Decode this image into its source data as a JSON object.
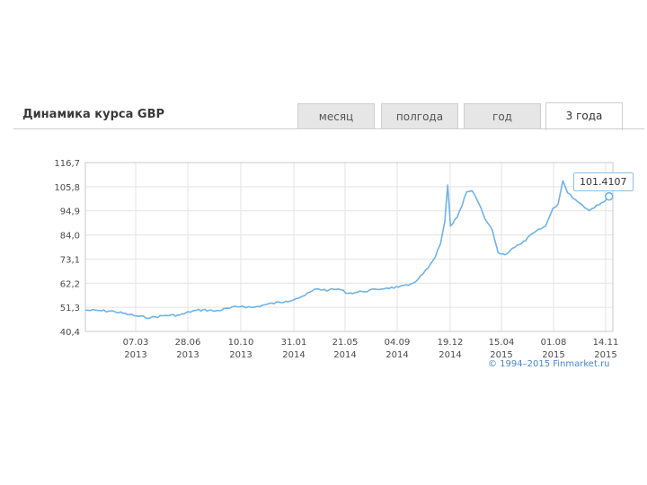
{
  "widget": {
    "title": "Динамика курса GBP",
    "tabs": [
      {
        "label": "месяц",
        "active": false
      },
      {
        "label": "полгода",
        "active": false
      },
      {
        "label": "год",
        "active": false
      },
      {
        "label": "3 года",
        "active": true
      }
    ],
    "credit": "© 1994–2015 Finmarket.ru",
    "last_value_label": "101.4107"
  },
  "colors": {
    "line": "#6fb3e6",
    "grid": "#e3e3e3",
    "axis": "#c8c8c8",
    "tab_bg": "#e6e6e6"
  },
  "chart_data": {
    "type": "line",
    "title": "",
    "xlabel": "",
    "ylabel": "",
    "ylim": [
      40.4,
      116.7
    ],
    "yticks": [
      "116,7",
      "105,8",
      "94,9",
      "84,0",
      "73,1",
      "62,2",
      "51,3",
      "40,4"
    ],
    "xticks": [
      {
        "date": "07.03",
        "year": "2013"
      },
      {
        "date": "28.06",
        "year": "2013"
      },
      {
        "date": "10.10",
        "year": "2013"
      },
      {
        "date": "31.01",
        "year": "2014"
      },
      {
        "date": "21.05",
        "year": "2014"
      },
      {
        "date": "04.09",
        "year": "2014"
      },
      {
        "date": "19.12",
        "year": "2014"
      },
      {
        "date": "15.04",
        "year": "2015"
      },
      {
        "date": "01.08",
        "year": "2015"
      },
      {
        "date": "14.11",
        "year": "2015"
      }
    ],
    "grid": true,
    "series": [
      {
        "values": [
          [
            "2012-11-15",
            50.0
          ],
          [
            "2012-12-15",
            49.8
          ],
          [
            "2013-01-15",
            49.4
          ],
          [
            "2013-02-15",
            48.0
          ],
          [
            "2013-03-07",
            47.2
          ],
          [
            "2013-04-01",
            46.6
          ],
          [
            "2013-05-01",
            47.6
          ],
          [
            "2013-06-01",
            47.8
          ],
          [
            "2013-06-28",
            49.6
          ],
          [
            "2013-07-20",
            50.2
          ],
          [
            "2013-08-15",
            49.6
          ],
          [
            "2013-09-15",
            51.0
          ],
          [
            "2013-10-10",
            51.8
          ],
          [
            "2013-11-01",
            51.2
          ],
          [
            "2013-12-01",
            52.6
          ],
          [
            "2014-01-10",
            54.0
          ],
          [
            "2014-01-31",
            55.2
          ],
          [
            "2014-02-20",
            56.8
          ],
          [
            "2014-03-15",
            59.6
          ],
          [
            "2014-04-10",
            59.0
          ],
          [
            "2014-05-01",
            59.6
          ],
          [
            "2014-05-21",
            57.6
          ],
          [
            "2014-06-20",
            58.4
          ],
          [
            "2014-07-20",
            59.4
          ],
          [
            "2014-08-10",
            60.0
          ],
          [
            "2014-09-04",
            60.4
          ],
          [
            "2014-09-25",
            61.2
          ],
          [
            "2014-10-15",
            64.0
          ],
          [
            "2014-11-05",
            69.0
          ],
          [
            "2014-11-20",
            74.0
          ],
          [
            "2014-12-01",
            80.0
          ],
          [
            "2014-12-10",
            90.0
          ],
          [
            "2014-12-16",
            106.5
          ],
          [
            "2014-12-22",
            88.0
          ],
          [
            "2015-01-05",
            92.0
          ],
          [
            "2015-01-15",
            97.0
          ],
          [
            "2015-01-25",
            103.5
          ],
          [
            "2015-02-05",
            104.0
          ],
          [
            "2015-02-20",
            98.0
          ],
          [
            "2015-03-05",
            91.0
          ],
          [
            "2015-03-20",
            86.0
          ],
          [
            "2015-04-01",
            76.0
          ],
          [
            "2015-04-15",
            75.0
          ],
          [
            "2015-05-01",
            78.0
          ],
          [
            "2015-05-20",
            80.0
          ],
          [
            "2015-06-15",
            85.0
          ],
          [
            "2015-07-10",
            88.0
          ],
          [
            "2015-07-25",
            96.0
          ],
          [
            "2015-08-05",
            98.0
          ],
          [
            "2015-08-15",
            108.5
          ],
          [
            "2015-08-25",
            103.0
          ],
          [
            "2015-09-10",
            100.0
          ],
          [
            "2015-09-25",
            97.5
          ],
          [
            "2015-10-10",
            95.0
          ],
          [
            "2015-10-25",
            97.5
          ],
          [
            "2015-11-10",
            99.0
          ],
          [
            "2015-11-20",
            101.4107
          ]
        ]
      }
    ]
  }
}
